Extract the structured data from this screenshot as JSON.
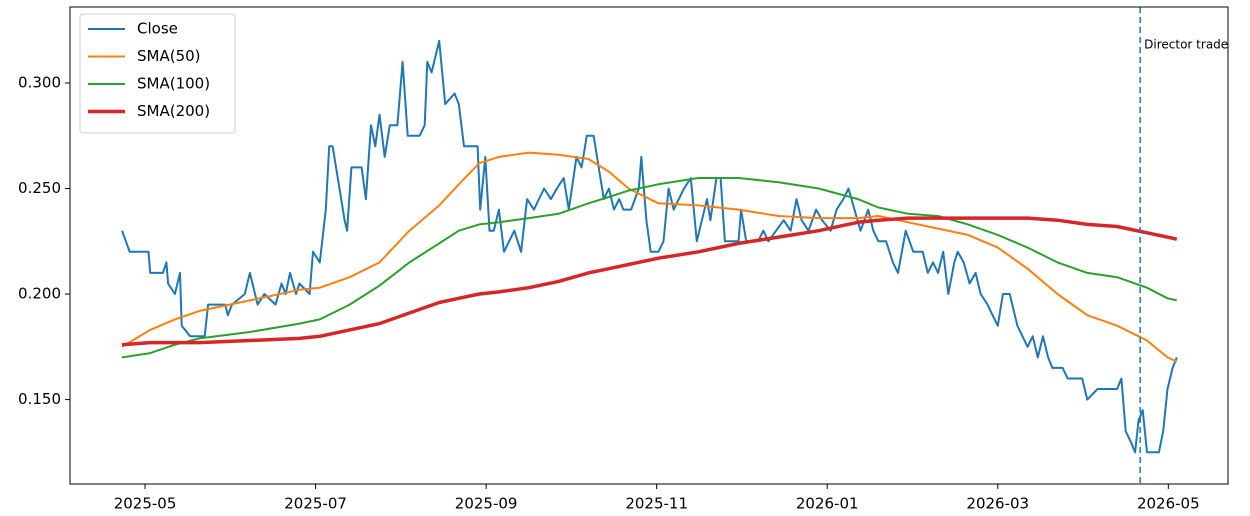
{
  "chart_data": {
    "type": "line",
    "xlim": [
      3.12,
      16.7
    ],
    "xticks": [
      {
        "value": 4,
        "label": "2025-05"
      },
      {
        "value": 6,
        "label": "2025-07"
      },
      {
        "value": 8,
        "label": "2025-09"
      },
      {
        "value": 10,
        "label": "2025-11"
      },
      {
        "value": 12,
        "label": "2026-01"
      },
      {
        "value": 14,
        "label": "2026-03"
      },
      {
        "value": 16,
        "label": "2026-05"
      }
    ],
    "ylim": [
      0.11,
      0.336
    ],
    "yticks": [
      {
        "value": 0.15,
        "label": "0.150"
      },
      {
        "value": 0.2,
        "label": "0.200"
      },
      {
        "value": 0.25,
        "label": "0.250"
      },
      {
        "value": 0.3,
        "label": "0.300"
      }
    ],
    "legend": "upper left",
    "series": [
      {
        "name": "Close",
        "color": "#1f77b4",
        "line_width": 2,
        "x": [
          3.73,
          3.82,
          4.04,
          4.06,
          4.21,
          4.25,
          4.27,
          4.35,
          4.41,
          4.43,
          4.53,
          4.7,
          4.74,
          4.94,
          4.97,
          5.02,
          5.17,
          5.23,
          5.32,
          5.4,
          5.53,
          5.6,
          5.65,
          5.7,
          5.77,
          5.81,
          5.93,
          5.97,
          6.05,
          6.12,
          6.16,
          6.2,
          6.28,
          6.34,
          6.37,
          6.42,
          6.54,
          6.59,
          6.65,
          6.7,
          6.75,
          6.81,
          6.87,
          6.96,
          7.02,
          7.08,
          7.22,
          7.28,
          7.31,
          7.36,
          7.45,
          7.52,
          7.63,
          7.68,
          7.74,
          7.9,
          7.93,
          7.99,
          8.04,
          8.09,
          8.15,
          8.21,
          8.33,
          8.41,
          8.48,
          8.56,
          8.68,
          8.76,
          8.83,
          8.91,
          8.97,
          9.06,
          9.12,
          9.18,
          9.26,
          9.32,
          9.38,
          9.44,
          9.5,
          9.56,
          9.61,
          9.7,
          9.79,
          9.82,
          9.88,
          9.93,
          10.02,
          10.08,
          10.14,
          10.2,
          10.32,
          10.4,
          10.47,
          10.53,
          10.59,
          10.63,
          10.7,
          10.75,
          10.8,
          10.96,
          10.99,
          11.05,
          11.19,
          11.25,
          11.31,
          11.4,
          11.49,
          11.57,
          11.64,
          11.7,
          11.78,
          11.87,
          11.94,
          12.04,
          12.11,
          12.19,
          12.25,
          12.32,
          12.39,
          12.48,
          12.54,
          12.6,
          12.69,
          12.77,
          12.83,
          12.92,
          13.01,
          13.12,
          13.18,
          13.24,
          13.3,
          13.36,
          13.42,
          13.49,
          13.53,
          13.6,
          13.67,
          13.74,
          13.8,
          13.88,
          13.94,
          14.0,
          14.06,
          14.14,
          14.23,
          14.29,
          14.35,
          14.41,
          14.47,
          14.53,
          14.59,
          14.64,
          14.76,
          14.82,
          14.99,
          15.05,
          15.17,
          15.4,
          15.45,
          15.5,
          15.56,
          15.61,
          15.65,
          15.7,
          15.75,
          15.89,
          15.94,
          15.99,
          16.05,
          16.1
        ],
        "values": [
          0.23,
          0.22,
          0.22,
          0.21,
          0.21,
          0.215,
          0.205,
          0.2,
          0.21,
          0.185,
          0.18,
          0.18,
          0.195,
          0.195,
          0.19,
          0.195,
          0.2,
          0.21,
          0.195,
          0.2,
          0.195,
          0.205,
          0.2,
          0.21,
          0.2,
          0.205,
          0.2,
          0.22,
          0.215,
          0.24,
          0.27,
          0.27,
          0.25,
          0.235,
          0.23,
          0.26,
          0.26,
          0.245,
          0.28,
          0.27,
          0.285,
          0.265,
          0.28,
          0.28,
          0.31,
          0.275,
          0.275,
          0.28,
          0.31,
          0.305,
          0.32,
          0.29,
          0.295,
          0.29,
          0.27,
          0.27,
          0.24,
          0.265,
          0.23,
          0.23,
          0.24,
          0.22,
          0.23,
          0.22,
          0.245,
          0.24,
          0.25,
          0.245,
          0.25,
          0.255,
          0.24,
          0.265,
          0.26,
          0.275,
          0.275,
          0.26,
          0.245,
          0.25,
          0.24,
          0.245,
          0.24,
          0.24,
          0.25,
          0.265,
          0.235,
          0.22,
          0.22,
          0.225,
          0.25,
          0.24,
          0.25,
          0.255,
          0.225,
          0.235,
          0.245,
          0.235,
          0.255,
          0.255,
          0.225,
          0.225,
          0.24,
          0.225,
          0.225,
          0.23,
          0.225,
          0.23,
          0.235,
          0.23,
          0.245,
          0.235,
          0.23,
          0.24,
          0.235,
          0.23,
          0.24,
          0.245,
          0.25,
          0.24,
          0.23,
          0.24,
          0.23,
          0.225,
          0.225,
          0.215,
          0.21,
          0.23,
          0.22,
          0.22,
          0.21,
          0.215,
          0.21,
          0.22,
          0.2,
          0.215,
          0.22,
          0.215,
          0.205,
          0.21,
          0.2,
          0.195,
          0.19,
          0.185,
          0.2,
          0.2,
          0.185,
          0.18,
          0.175,
          0.18,
          0.17,
          0.18,
          0.17,
          0.165,
          0.165,
          0.16,
          0.16,
          0.15,
          0.155,
          0.155,
          0.16,
          0.135,
          0.13,
          0.125,
          0.14,
          0.145,
          0.125,
          0.125,
          0.135,
          0.155,
          0.165,
          0.17
        ]
      },
      {
        "name": "SMA(50)",
        "color": "#ff7f0e",
        "line_width": 2,
        "x": [
          3.73,
          4.06,
          4.35,
          4.64,
          5.23,
          5.81,
          6.05,
          6.4,
          6.75,
          7.1,
          7.45,
          7.68,
          7.92,
          8.15,
          8.5,
          8.85,
          9.2,
          9.44,
          9.67,
          10.02,
          10.49,
          10.96,
          11.43,
          11.9,
          12.36,
          12.6,
          12.95,
          13.3,
          13.65,
          14.0,
          14.35,
          14.7,
          15.05,
          15.4,
          15.75,
          15.99,
          16.1
        ],
        "values": [
          0.175,
          0.183,
          0.188,
          0.192,
          0.197,
          0.202,
          0.203,
          0.208,
          0.215,
          0.23,
          0.242,
          0.252,
          0.262,
          0.265,
          0.267,
          0.266,
          0.264,
          0.258,
          0.25,
          0.243,
          0.242,
          0.24,
          0.237,
          0.236,
          0.236,
          0.237,
          0.234,
          0.231,
          0.228,
          0.222,
          0.212,
          0.2,
          0.19,
          0.185,
          0.178,
          0.17,
          0.168
        ]
      },
      {
        "name": "SMA(100)",
        "color": "#2ca02c",
        "line_width": 2,
        "x": [
          3.73,
          4.06,
          4.35,
          4.64,
          5.23,
          5.81,
          6.05,
          6.4,
          6.75,
          7.1,
          7.45,
          7.68,
          7.92,
          8.15,
          8.5,
          8.85,
          9.2,
          9.44,
          9.67,
          10.02,
          10.49,
          10.96,
          11.43,
          11.9,
          12.36,
          12.6,
          12.95,
          13.3,
          13.65,
          14.0,
          14.35,
          14.7,
          15.05,
          15.4,
          15.75,
          15.99,
          16.1
        ],
        "values": [
          0.17,
          0.172,
          0.176,
          0.179,
          0.182,
          0.186,
          0.188,
          0.195,
          0.204,
          0.215,
          0.224,
          0.23,
          0.233,
          0.234,
          0.236,
          0.238,
          0.243,
          0.246,
          0.249,
          0.252,
          0.255,
          0.255,
          0.253,
          0.25,
          0.245,
          0.241,
          0.238,
          0.237,
          0.233,
          0.228,
          0.222,
          0.215,
          0.21,
          0.208,
          0.203,
          0.198,
          0.197
        ]
      },
      {
        "name": "SMA(200)",
        "color": "#d62728",
        "line_width": 3.5,
        "x": [
          3.73,
          4.06,
          4.35,
          4.64,
          5.23,
          5.81,
          6.05,
          6.4,
          6.75,
          7.1,
          7.45,
          7.68,
          7.92,
          8.15,
          8.5,
          8.85,
          9.2,
          9.44,
          9.67,
          10.02,
          10.49,
          10.96,
          11.43,
          11.9,
          12.36,
          12.6,
          12.95,
          13.3,
          13.65,
          14.0,
          14.35,
          14.7,
          15.05,
          15.4,
          15.75,
          15.99,
          16.1
        ],
        "values": [
          0.176,
          0.177,
          0.177,
          0.177,
          0.178,
          0.179,
          0.18,
          0.183,
          0.186,
          0.191,
          0.196,
          0.198,
          0.2,
          0.201,
          0.203,
          0.206,
          0.21,
          0.212,
          0.214,
          0.217,
          0.22,
          0.224,
          0.227,
          0.23,
          0.234,
          0.235,
          0.236,
          0.236,
          0.236,
          0.236,
          0.236,
          0.235,
          0.233,
          0.232,
          0.229,
          0.227,
          0.226
        ]
      }
    ],
    "annotations": [
      {
        "text": "Director trade",
        "x": 15.67,
        "color": "#1f77b4"
      }
    ]
  }
}
